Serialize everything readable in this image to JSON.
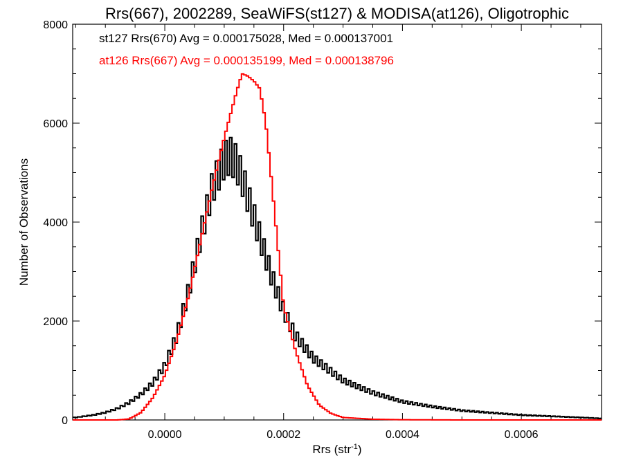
{
  "chart_data": {
    "type": "histogram",
    "title": "Rrs(667), 2002289, SeaWiFS(st127) & MODISA(at126), Oligotrophic",
    "xlabel_main": "Rrs (str",
    "xlabel_sup": "-1",
    "xlabel_close": ")",
    "ylabel": "Number of Observations",
    "xlim": [
      -0.000155,
      0.000735
    ],
    "ylim": [
      0,
      8000
    ],
    "x_ticks": [
      0.0,
      0.0002,
      0.0004,
      0.0006
    ],
    "x_tick_labels": [
      "0.0000",
      "0.0002",
      "0.0004",
      "0.0006"
    ],
    "y_ticks": [
      0,
      2000,
      4000,
      6000,
      8000
    ],
    "y_tick_labels": [
      "0",
      "2000",
      "4000",
      "6000",
      "8000"
    ],
    "legend_placement": "top-left",
    "series": [
      {
        "name": "st127 Rrs(670) Avg = 0.000175028, Med = 0.000137001",
        "color": "#000000",
        "style": "jagged-histogram",
        "x": [
          -0.00015,
          -0.00012,
          -0.0001,
          -8e-05,
          -6e-05,
          -4e-05,
          -2e-05,
          0.0,
          2e-05,
          4e-05,
          6e-05,
          8e-05,
          0.0001,
          0.00011,
          0.00012,
          0.00013,
          0.00014,
          0.00016,
          0.00018,
          0.0002,
          0.00022,
          0.00025,
          0.0003,
          0.00035,
          0.0004,
          0.00045,
          0.0005,
          0.0006,
          0.0007,
          0.000735
        ],
        "y": [
          50,
          100,
          150,
          230,
          350,
          520,
          750,
          1100,
          1700,
          2600,
          3700,
          4700,
          5250,
          5350,
          5200,
          4900,
          4500,
          3700,
          2900,
          2200,
          1700,
          1250,
          800,
          550,
          370,
          270,
          190,
          100,
          50,
          30
        ]
      },
      {
        "name": "at126 Rrs(667) Avg = 0.000135199, Med = 0.000138796",
        "color": "#ff0000",
        "style": "smooth-histogram",
        "x": [
          -0.00015,
          -0.0001,
          -8e-05,
          -6e-05,
          -4e-05,
          -2e-05,
          0.0,
          2e-05,
          4e-05,
          6e-05,
          8e-05,
          0.0001,
          0.00012,
          0.00013,
          0.00014,
          0.00015,
          0.00016,
          0.00017,
          0.00018,
          0.0002,
          0.00022,
          0.00024,
          0.00026,
          0.00028,
          0.0003,
          0.00035,
          0.0004,
          0.0005,
          0.000735
        ],
        "y": [
          0,
          0,
          0,
          20,
          150,
          450,
          900,
          1600,
          2500,
          3600,
          4700,
          5700,
          6600,
          7000,
          6950,
          6850,
          6700,
          6000,
          4800,
          2300,
          1400,
          700,
          300,
          130,
          50,
          15,
          5,
          0,
          0
        ]
      }
    ]
  }
}
